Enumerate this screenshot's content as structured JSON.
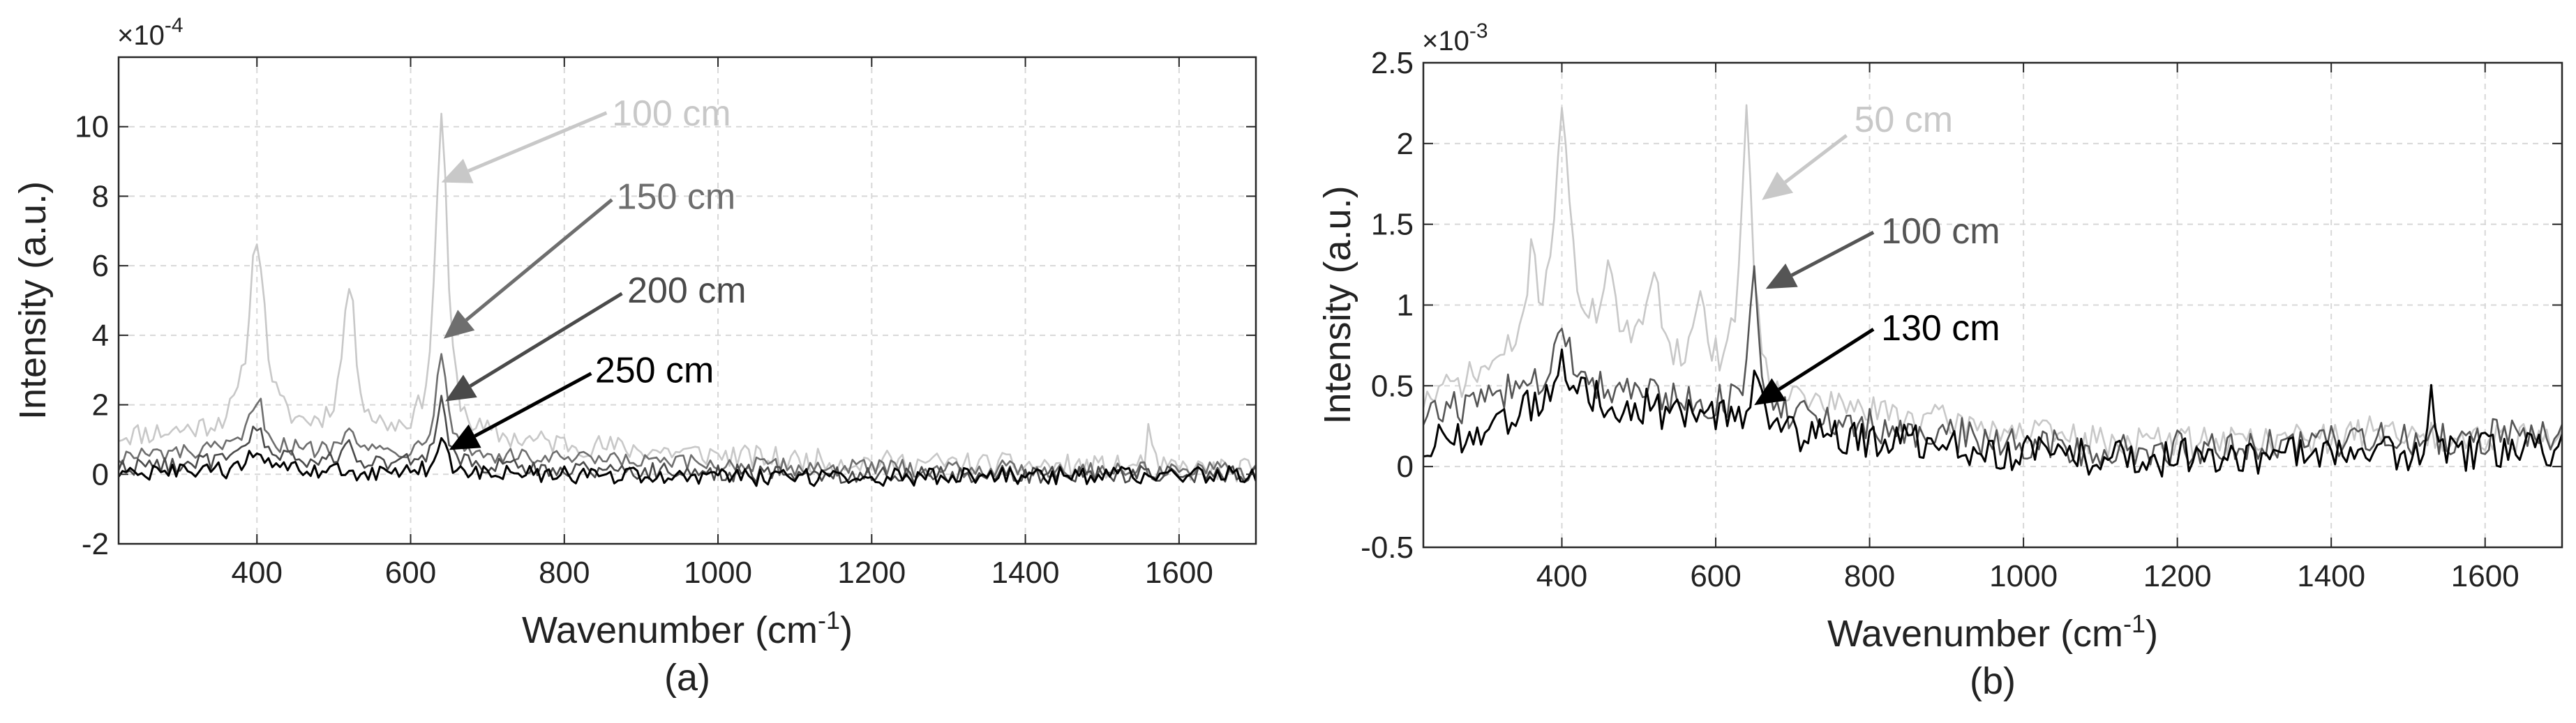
{
  "chart_data": [
    {
      "type": "line",
      "panel_label": "(a)",
      "xlabel": "Wavenumber (cm",
      "xlabel_sup": "-1",
      "xlabel_close": ")",
      "ylabel": "Intensity (a.u.)",
      "exponent_base": "×10",
      "exponent_power": "-4",
      "xlim": [
        220,
        1700
      ],
      "ylim": [
        -2,
        12
      ],
      "xticks": [
        400,
        600,
        800,
        1000,
        1200,
        1400,
        1600
      ],
      "yticks": [
        -2,
        0,
        2,
        4,
        6,
        8,
        10
      ],
      "grid": true,
      "series": [
        {
          "name": "100 cm",
          "color": "#c8c8c8",
          "peaks": [
            [
              400,
              5.6,
              12
            ],
            [
              520,
              4.2,
              10
            ],
            [
              640,
              9.4,
              9
            ],
            [
              1560,
              1.3,
              3
            ]
          ],
          "baseline": [
            [
              220,
              1.1
            ],
            [
              400,
              1.3
            ],
            [
              700,
              1.0
            ],
            [
              1100,
              0.4
            ],
            [
              1700,
              0.1
            ]
          ],
          "noise": 0.35
        },
        {
          "name": "150 cm",
          "color": "#6e6e6e",
          "peaks": [
            [
              400,
              1.5,
              11
            ],
            [
              520,
              0.9,
              10
            ],
            [
              640,
              3.1,
              9
            ]
          ],
          "baseline": [
            [
              220,
              0.5
            ],
            [
              400,
              0.7
            ],
            [
              700,
              0.5
            ],
            [
              1100,
              0.2
            ],
            [
              1700,
              0.1
            ]
          ],
          "noise": 0.25
        },
        {
          "name": "200 cm",
          "color": "#4a4a4a",
          "peaks": [
            [
              400,
              1.0,
              11
            ],
            [
              520,
              0.5,
              10
            ],
            [
              640,
              1.8,
              9
            ]
          ],
          "baseline": [
            [
              220,
              0.2
            ],
            [
              400,
              0.4
            ],
            [
              700,
              0.2
            ],
            [
              1100,
              0.0
            ],
            [
              1700,
              0.0
            ]
          ],
          "noise": 0.25
        },
        {
          "name": "250 cm",
          "color": "#000000",
          "peaks": [
            [
              400,
              0.6,
              11
            ],
            [
              640,
              0.9,
              9
            ]
          ],
          "baseline": [
            [
              220,
              0.0
            ],
            [
              400,
              0.1
            ],
            [
              700,
              0.0
            ],
            [
              1100,
              -0.1
            ],
            [
              1700,
              0.0
            ]
          ],
          "noise": 0.25
        }
      ],
      "annotations": [
        {
          "text": "100 cm",
          "color": "#c8c8c8",
          "text_at": [
            862,
            10.4
          ],
          "tip_at": [
            640,
            8.4
          ],
          "tail_at": [
            855,
            10.4
          ]
        },
        {
          "text": "150 cm",
          "color": "#6e6e6e",
          "text_at": [
            868,
            8.0
          ],
          "tip_at": [
            643,
            3.9
          ],
          "tail_at": [
            862,
            7.9
          ]
        },
        {
          "text": "200 cm",
          "color": "#4a4a4a",
          "text_at": [
            882,
            5.3
          ],
          "tip_at": [
            645,
            2.1
          ],
          "tail_at": [
            875,
            5.2
          ]
        },
        {
          "text": "250 cm",
          "color": "#000000",
          "text_at": [
            840,
            3.0
          ],
          "tip_at": [
            650,
            0.7
          ],
          "tail_at": [
            835,
            2.9
          ]
        }
      ]
    },
    {
      "type": "line",
      "panel_label": "(b)",
      "xlabel": "Wavenumber (cm",
      "xlabel_sup": "-1",
      "xlabel_close": ")",
      "ylabel": "Intensity (a.u.)",
      "exponent_base": "×10",
      "exponent_power": "-3",
      "xlim": [
        220,
        1700
      ],
      "ylim": [
        -0.5,
        2.5
      ],
      "xticks": [
        400,
        600,
        800,
        1000,
        1200,
        1400,
        1600
      ],
      "yticks": [
        -0.5,
        0,
        0.5,
        1,
        1.5,
        2,
        2.5
      ],
      "grid": true,
      "series": [
        {
          "name": "50 cm",
          "color": "#c8c8c8",
          "peaks": [
            [
              360,
              0.5,
              8
            ],
            [
              400,
              1.4,
              11
            ],
            [
              460,
              0.5,
              9
            ],
            [
              520,
              0.6,
              9
            ],
            [
              580,
              0.5,
              8
            ],
            [
              640,
              1.7,
              9
            ],
            [
              1450,
              0.2,
              5
            ]
          ],
          "baseline": [
            [
              220,
              0.4
            ],
            [
              400,
              0.8
            ],
            [
              700,
              0.4
            ],
            [
              1100,
              0.15
            ],
            [
              1700,
              0.2
            ]
          ],
          "noise": 0.1
        },
        {
          "name": "100 cm",
          "color": "#555555",
          "peaks": [
            [
              400,
              0.3,
              11
            ],
            [
              650,
              0.8,
              8
            ]
          ],
          "baseline": [
            [
              220,
              0.3
            ],
            [
              400,
              0.55
            ],
            [
              700,
              0.3
            ],
            [
              1100,
              0.1
            ],
            [
              1700,
              0.2
            ]
          ],
          "noise": 0.11
        },
        {
          "name": "130 cm",
          "color": "#000000",
          "peaks": [
            [
              400,
              0.25,
              11
            ],
            [
              650,
              0.3,
              9
            ],
            [
              1530,
              0.4,
              3
            ]
          ],
          "baseline": [
            [
              220,
              0.1
            ],
            [
              400,
              0.45
            ],
            [
              700,
              0.2
            ],
            [
              1100,
              0.05
            ],
            [
              1700,
              0.1
            ]
          ],
          "noise": 0.12
        }
      ],
      "annotations": [
        {
          "text": "50 cm",
          "color": "#c8c8c8",
          "text_at": [
            780,
            2.15
          ],
          "tip_at": [
            660,
            1.65
          ],
          "tail_at": [
            770,
            2.05
          ]
        },
        {
          "text": "100 cm",
          "color": "#555555",
          "text_at": [
            815,
            1.46
          ],
          "tip_at": [
            665,
            1.1
          ],
          "tail_at": [
            805,
            1.45
          ]
        },
        {
          "text": "130 cm",
          "color": "#000000",
          "text_at": [
            815,
            0.86
          ],
          "tip_at": [
            650,
            0.38
          ],
          "tail_at": [
            805,
            0.85
          ]
        }
      ]
    }
  ]
}
